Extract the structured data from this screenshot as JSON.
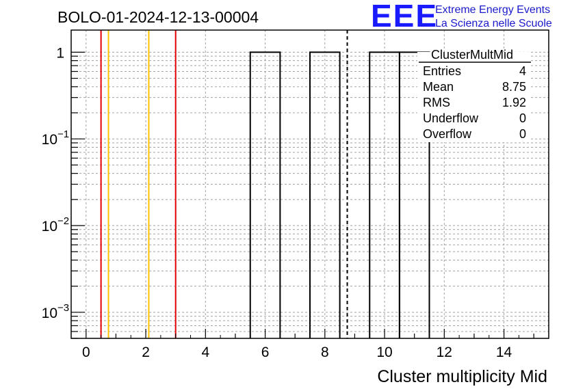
{
  "chart_data": {
    "type": "histogram",
    "title": "BOLO-01-2024-12-13-00004",
    "xlabel": "Cluster multiplicity Mid",
    "ylabel": "",
    "xlim": [
      -0.5,
      15.5
    ],
    "ylim": [
      0.0005,
      1.8
    ],
    "yscale": "log",
    "grid": true,
    "xticks": [
      0,
      2,
      4,
      6,
      8,
      10,
      12,
      14
    ],
    "yticks": [
      {
        "value": 1,
        "label": "1"
      },
      {
        "value": 0.1,
        "label": "10",
        "exp": "−1"
      },
      {
        "value": 0.01,
        "label": "10",
        "exp": "−2"
      },
      {
        "value": 0.001,
        "label": "10",
        "exp": "−3"
      }
    ],
    "bins": [
      {
        "low": 5.5,
        "high": 6.5,
        "value": 1
      },
      {
        "low": 7.5,
        "high": 8.5,
        "value": 1
      },
      {
        "low": 9.5,
        "high": 10.5,
        "value": 1
      },
      {
        "low": 10.5,
        "high": 11.5,
        "value": 1
      }
    ],
    "vertical_lines": [
      {
        "x": 0.5,
        "color": "#e00000",
        "style": "solid"
      },
      {
        "x": 0.75,
        "color": "#ffc000",
        "style": "solid"
      },
      {
        "x": 2.1,
        "color": "#ffc000",
        "style": "solid"
      },
      {
        "x": 3.0,
        "color": "#e00000",
        "style": "solid"
      },
      {
        "x": 8.75,
        "color": "#000000",
        "style": "dashed"
      }
    ],
    "stats_box": {
      "name": "ClusterMultMid",
      "rows": [
        {
          "label": "Entries",
          "value": "4"
        },
        {
          "label": "Mean",
          "value": "8.75"
        },
        {
          "label": "RMS",
          "value": "1.92"
        },
        {
          "label": "Underflow",
          "value": "0"
        },
        {
          "label": "Overflow",
          "value": "0"
        }
      ]
    }
  },
  "logo": {
    "big": "EEE",
    "line1": "Extreme Energy Events",
    "line2": "La Scienza nelle Scuole",
    "color": "#1a1aff"
  }
}
